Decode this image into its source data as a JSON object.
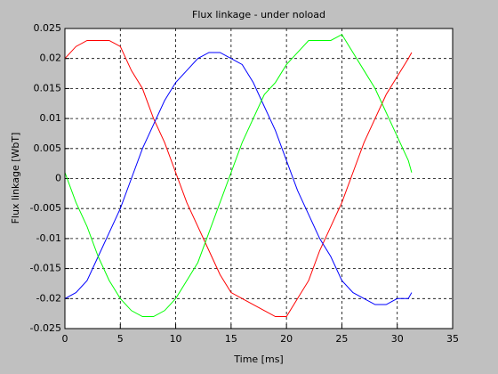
{
  "chart_data": {
    "type": "line",
    "title": "Flux linkage - under noload",
    "xlabel": "Time [ms]",
    "ylabel": "Flux linkage [WbT]",
    "x": [
      0,
      1,
      2,
      3,
      4,
      5,
      6,
      7,
      8,
      9,
      10,
      11,
      12,
      13,
      14,
      15,
      16,
      17,
      18,
      19,
      20,
      21,
      22,
      23,
      24,
      25,
      26,
      27,
      28,
      29,
      30,
      31,
      31.3
    ],
    "series": [
      {
        "color": "#ff0000",
        "values": [
          0.02,
          0.022,
          0.023,
          0.023,
          0.023,
          0.022,
          0.018,
          0.015,
          0.01,
          0.006,
          0.001,
          -0.004,
          -0.008,
          -0.012,
          -0.016,
          -0.019,
          -0.02,
          -0.021,
          -0.022,
          -0.023,
          -0.023,
          -0.02,
          -0.017,
          -0.012,
          -0.008,
          -0.004,
          0.001,
          0.006,
          0.01,
          0.014,
          0.017,
          0.02,
          0.021
        ]
      },
      {
        "color": "#0000ff",
        "values": [
          -0.02,
          -0.019,
          -0.017,
          -0.013,
          -0.009,
          -0.005,
          0,
          0.005,
          0.009,
          0.013,
          0.016,
          0.018,
          0.02,
          0.021,
          0.021,
          0.02,
          0.019,
          0.016,
          0.012,
          0.008,
          0.003,
          -0.002,
          -0.006,
          -0.01,
          -0.013,
          -0.017,
          -0.019,
          -0.02,
          -0.021,
          -0.021,
          -0.02,
          -0.02,
          -0.019
        ]
      },
      {
        "color": "#00ff00",
        "values": [
          0.001,
          -0.004,
          -0.008,
          -0.013,
          -0.017,
          -0.02,
          -0.022,
          -0.023,
          -0.023,
          -0.022,
          -0.02,
          -0.017,
          -0.014,
          -0.009,
          -0.004,
          0.001,
          0.006,
          0.01,
          0.014,
          0.016,
          0.019,
          0.021,
          0.023,
          0.023,
          0.023,
          0.024,
          0.021,
          0.018,
          0.015,
          0.011,
          0.007,
          0.003,
          0.001
        ]
      }
    ],
    "xlim": [
      0,
      35
    ],
    "xticks": [
      0,
      5,
      10,
      15,
      20,
      25,
      30,
      35
    ],
    "ylim": [
      -0.025,
      0.025
    ],
    "yticks": [
      -0.025,
      -0.02,
      -0.015,
      -0.01,
      -0.005,
      0,
      0.005,
      0.01,
      0.015,
      0.02,
      0.025
    ],
    "grid": true
  }
}
